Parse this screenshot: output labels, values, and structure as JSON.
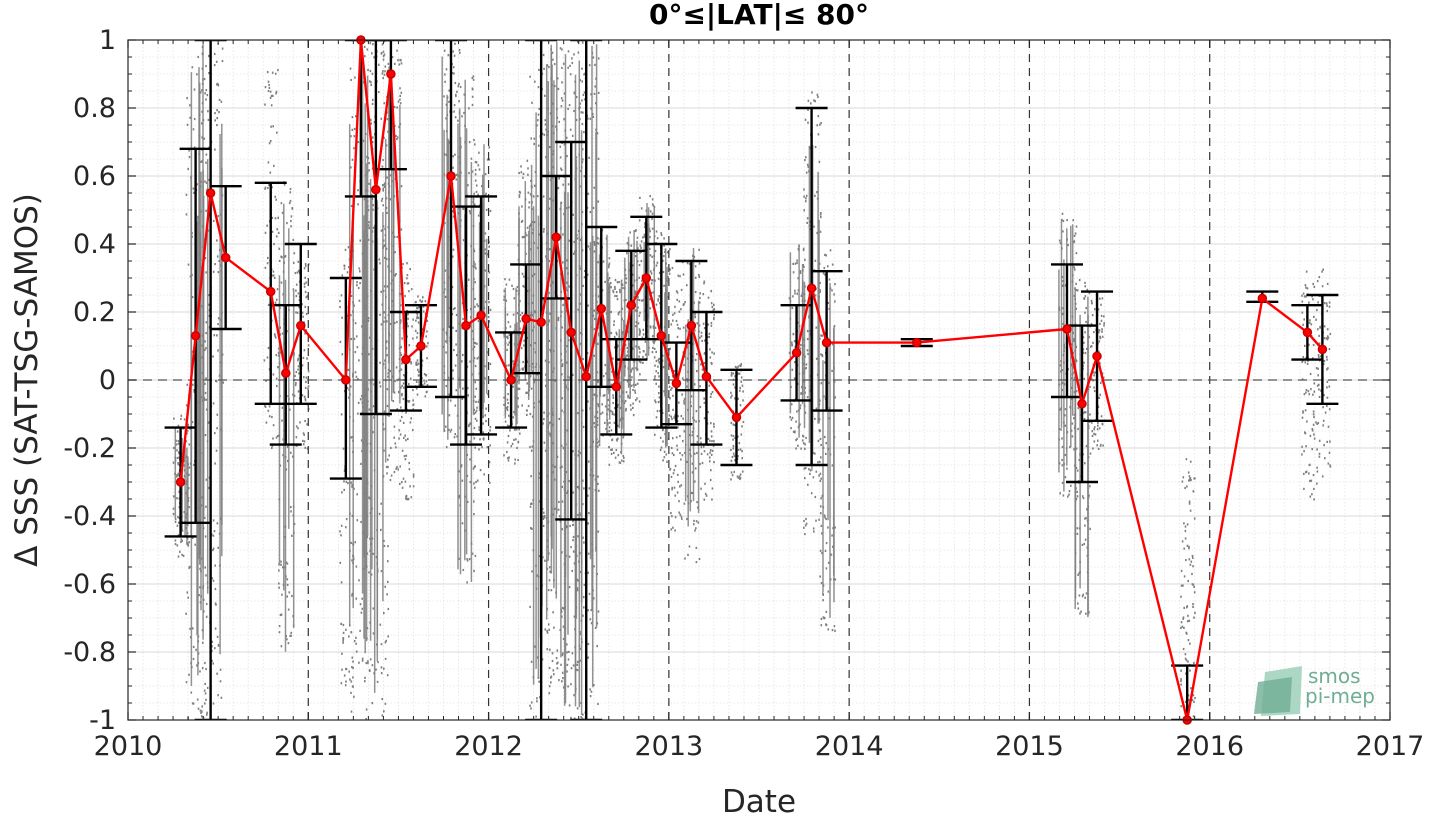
{
  "chart_data": {
    "type": "line",
    "title": "0°≤|LAT|≤ 80°",
    "xlabel": "Date",
    "ylabel": "Δ SSS (SAT-TSG-SAMOS)",
    "xlim": [
      2010,
      2017
    ],
    "ylim": [
      -1,
      1
    ],
    "x_ticks": [
      "2010",
      "2011",
      "2012",
      "2013",
      "2014",
      "2015",
      "2016",
      "2017"
    ],
    "y_ticks": [
      "-1",
      "-0.8",
      "-0.6",
      "-0.4",
      "-0.2",
      "0",
      "0.2",
      "0.4",
      "0.6",
      "0.8",
      "1"
    ],
    "grid": true,
    "zero_line": true,
    "year_dividers": true,
    "colors": {
      "mean_line": "#ff0000",
      "marker_edge": "#c80000",
      "error_bars": "#000000",
      "scatter": "#7f7f7f",
      "zero_line": "#555555",
      "axis": "#262626",
      "logo": "#6fae95"
    },
    "series": [
      {
        "marker": "o",
        "points": [
          {
            "x": "2010-04",
            "y": -0.3,
            "lo": -0.46,
            "hi": -0.14
          },
          {
            "x": "2010-05",
            "y": 0.13,
            "lo": -0.42,
            "hi": 0.68
          },
          {
            "x": "2010-06",
            "y": 0.55,
            "lo": -1.0,
            "hi": 1.0
          },
          {
            "x": "2010-07",
            "y": 0.36,
            "lo": 0.15,
            "hi": 0.57
          },
          {
            "x": "2010-10",
            "y": 0.26,
            "lo": -0.07,
            "hi": 0.58
          },
          {
            "x": "2010-11",
            "y": 0.02,
            "lo": -0.19,
            "hi": 0.22
          },
          {
            "x": "2010-12",
            "y": 0.16,
            "lo": -0.07,
            "hi": 0.4
          },
          {
            "x": "2011-03",
            "y": 0.0,
            "lo": -0.29,
            "hi": 0.3
          },
          {
            "x": "2011-04",
            "y": 1.0,
            "lo": 0.54,
            "hi": 1.0
          },
          {
            "x": "2011-05",
            "y": 0.56,
            "lo": -0.1,
            "hi": 1.0
          },
          {
            "x": "2011-06",
            "y": 0.9,
            "lo": 0.62,
            "hi": 1.0
          },
          {
            "x": "2011-07",
            "y": 0.06,
            "lo": -0.09,
            "hi": 0.2
          },
          {
            "x": "2011-08",
            "y": 0.1,
            "lo": -0.02,
            "hi": 0.22
          },
          {
            "x": "2011-10",
            "y": 0.6,
            "lo": -0.05,
            "hi": 1.0
          },
          {
            "x": "2011-11",
            "y": 0.16,
            "lo": -0.19,
            "hi": 0.51
          },
          {
            "x": "2011-12",
            "y": 0.19,
            "lo": -0.16,
            "hi": 0.54
          },
          {
            "x": "2012-02",
            "y": 0.0,
            "lo": -0.14,
            "hi": 0.14
          },
          {
            "x": "2012-03",
            "y": 0.18,
            "lo": 0.02,
            "hi": 0.34
          },
          {
            "x": "2012-04",
            "y": 0.17,
            "lo": -1.0,
            "hi": 1.0
          },
          {
            "x": "2012-05",
            "y": 0.42,
            "lo": 0.24,
            "hi": 0.6
          },
          {
            "x": "2012-06",
            "y": 0.14,
            "lo": -0.41,
            "hi": 0.7
          },
          {
            "x": "2012-07",
            "y": 0.01,
            "lo": -1.0,
            "hi": 1.0
          },
          {
            "x": "2012-08",
            "y": 0.21,
            "lo": -0.02,
            "hi": 0.45
          },
          {
            "x": "2012-09",
            "y": -0.02,
            "lo": -0.16,
            "hi": 0.12
          },
          {
            "x": "2012-10",
            "y": 0.22,
            "lo": 0.06,
            "hi": 0.38
          },
          {
            "x": "2012-11",
            "y": 0.3,
            "lo": 0.12,
            "hi": 0.48
          },
          {
            "x": "2012-12",
            "y": 0.13,
            "lo": -0.14,
            "hi": 0.4
          },
          {
            "x": "2013-01",
            "y": -0.01,
            "lo": -0.13,
            "hi": 0.11
          },
          {
            "x": "2013-02",
            "y": 0.16,
            "lo": -0.03,
            "hi": 0.35
          },
          {
            "x": "2013-03",
            "y": 0.01,
            "lo": -0.19,
            "hi": 0.2
          },
          {
            "x": "2013-05",
            "y": -0.11,
            "lo": -0.25,
            "hi": 0.03
          },
          {
            "x": "2013-09",
            "y": 0.08,
            "lo": -0.06,
            "hi": 0.22
          },
          {
            "x": "2013-10",
            "y": 0.27,
            "lo": -0.25,
            "hi": 0.8
          },
          {
            "x": "2013-11",
            "y": 0.11,
            "lo": -0.09,
            "hi": 0.32
          },
          {
            "x": "2014-05",
            "y": 0.11,
            "lo": 0.1,
            "hi": 0.12
          },
          {
            "x": "2015-03",
            "y": 0.15,
            "lo": -0.05,
            "hi": 0.34
          },
          {
            "x": "2015-04",
            "y": -0.07,
            "lo": -0.3,
            "hi": 0.16
          },
          {
            "x": "2015-05",
            "y": 0.07,
            "lo": -0.12,
            "hi": 0.26
          },
          {
            "x": "2015-11",
            "y": -1.0,
            "lo": -1.0,
            "hi": -0.84
          },
          {
            "x": "2016-04",
            "y": 0.24,
            "lo": 0.23,
            "hi": 0.26
          },
          {
            "x": "2016-07",
            "y": 0.14,
            "lo": 0.06,
            "hi": 0.22
          },
          {
            "x": "2016-08",
            "y": 0.09,
            "lo": -0.07,
            "hi": 0.25
          }
        ]
      }
    ],
    "scatter_clouds": [
      {
        "x": "2010-04",
        "lo": -0.52,
        "hi": -0.1,
        "density": 0.5
      },
      {
        "x": "2010-05",
        "lo": -1.0,
        "hi": 1.0,
        "density": 0.8
      },
      {
        "x": "2010-06",
        "lo": -1.0,
        "hi": 1.0,
        "density": 1.0
      },
      {
        "x": "2010-10",
        "lo": -0.2,
        "hi": 0.95,
        "density": 0.4
      },
      {
        "x": "2010-11",
        "lo": -0.8,
        "hi": 0.6,
        "density": 0.5
      },
      {
        "x": "2010-12",
        "lo": -0.2,
        "hi": 0.4,
        "density": 0.4
      },
      {
        "x": "2011-03",
        "lo": -0.9,
        "hi": 0.4,
        "density": 0.4
      },
      {
        "x": "2011-04",
        "lo": -1.0,
        "hi": 1.0,
        "density": 0.9
      },
      {
        "x": "2011-05",
        "lo": -1.0,
        "hi": 1.0,
        "density": 1.0
      },
      {
        "x": "2011-06",
        "lo": -0.3,
        "hi": 1.0,
        "density": 0.8
      },
      {
        "x": "2011-07",
        "lo": -0.35,
        "hi": 0.35,
        "density": 0.4
      },
      {
        "x": "2011-08",
        "lo": -0.05,
        "hi": 0.25,
        "density": 0.3
      },
      {
        "x": "2011-10",
        "lo": -0.2,
        "hi": 1.0,
        "density": 0.6
      },
      {
        "x": "2011-11",
        "lo": -0.6,
        "hi": 0.9,
        "density": 0.6
      },
      {
        "x": "2011-12",
        "lo": -0.3,
        "hi": 0.7,
        "density": 0.6
      },
      {
        "x": "2012-02",
        "lo": -0.25,
        "hi": 0.3,
        "density": 0.5
      },
      {
        "x": "2012-03",
        "lo": -0.1,
        "hi": 0.65,
        "density": 0.6
      },
      {
        "x": "2012-04",
        "lo": -1.0,
        "hi": 1.0,
        "density": 1.0
      },
      {
        "x": "2012-05",
        "lo": -0.9,
        "hi": 1.0,
        "density": 0.8
      },
      {
        "x": "2012-06",
        "lo": -1.0,
        "hi": 1.0,
        "density": 0.9
      },
      {
        "x": "2012-07",
        "lo": -1.0,
        "hi": 1.0,
        "density": 1.0
      },
      {
        "x": "2012-08",
        "lo": -0.2,
        "hi": 0.45,
        "density": 0.5
      },
      {
        "x": "2012-09",
        "lo": -0.25,
        "hi": 0.3,
        "density": 0.5
      },
      {
        "x": "2012-10",
        "lo": -0.1,
        "hi": 0.45,
        "density": 0.5
      },
      {
        "x": "2012-11",
        "lo": 0.05,
        "hi": 0.55,
        "density": 0.5
      },
      {
        "x": "2012-12",
        "lo": -0.25,
        "hi": 0.45,
        "density": 0.5
      },
      {
        "x": "2013-01",
        "lo": -0.45,
        "hi": 0.35,
        "density": 0.4
      },
      {
        "x": "2013-02",
        "lo": -0.55,
        "hi": 0.4,
        "density": 0.5
      },
      {
        "x": "2013-03",
        "lo": -0.35,
        "hi": 0.3,
        "density": 0.4
      },
      {
        "x": "2013-05",
        "lo": -0.3,
        "hi": 0.05,
        "density": 0.3
      },
      {
        "x": "2013-09",
        "lo": -0.2,
        "hi": 0.4,
        "density": 0.5
      },
      {
        "x": "2013-10",
        "lo": -0.45,
        "hi": 0.85,
        "density": 0.6
      },
      {
        "x": "2013-11",
        "lo": -0.75,
        "hi": 0.4,
        "density": 0.5
      },
      {
        "x": "2015-03",
        "lo": -0.35,
        "hi": 0.5,
        "density": 0.6
      },
      {
        "x": "2015-04",
        "lo": -0.7,
        "hi": 0.3,
        "density": 0.5
      },
      {
        "x": "2015-05",
        "lo": -0.2,
        "hi": 0.25,
        "density": 0.3
      },
      {
        "x": "2015-11",
        "lo": -1.0,
        "hi": -0.22,
        "density": 0.4
      },
      {
        "x": "2016-07",
        "lo": -0.35,
        "hi": 0.35,
        "density": 0.3
      },
      {
        "x": "2016-08",
        "lo": -0.33,
        "hi": 0.34,
        "density": 0.4
      }
    ]
  },
  "logo": {
    "line1": "smos",
    "line2": "pi-mep"
  }
}
